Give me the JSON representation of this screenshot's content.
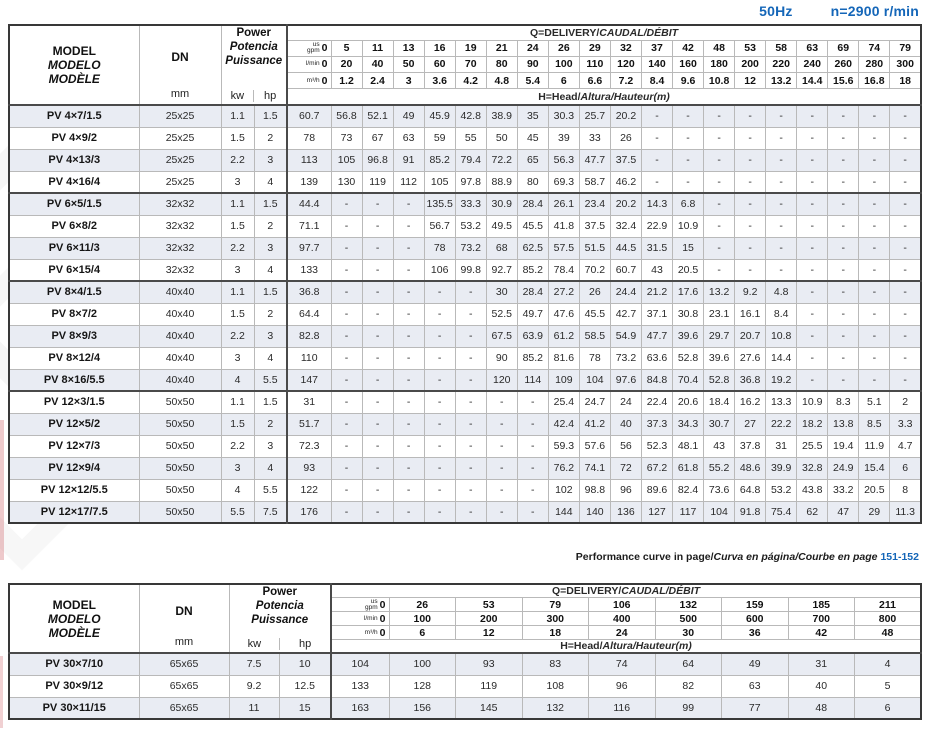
{
  "page": {
    "frequency": "50Hz",
    "speed": "n=2900 r/min"
  },
  "colors": {
    "accent_blue": "#1466b8",
    "row_stripe": "#e9ecf3",
    "border_dark": "#4a4a4a",
    "border_light": "#b9b9b9"
  },
  "note": {
    "plain": "Performance curve in page/",
    "italic": "Curva en página/Courbe en page",
    "pages": "151-152"
  },
  "shared": {
    "model_header": [
      {
        "t": "MODEL",
        "i": false
      },
      {
        "t": "MODELO",
        "i": true
      },
      {
        "t": "MODÈLE",
        "i": true
      }
    ],
    "dn_label": "DN",
    "mm_label": "mm",
    "power_header": [
      {
        "t": "Power",
        "i": false
      },
      {
        "t": "Potencia",
        "i": true
      },
      {
        "t": "Puissance",
        "i": true
      }
    ],
    "kw_label": "kw",
    "hp_label": "hp",
    "q_title": [
      {
        "t": "Q=DELIVERY/",
        "i": false
      },
      {
        "t": "CAUDAL/DÉBIT",
        "i": true
      }
    ],
    "h_title": [
      {
        "t": "H=Head/",
        "i": false
      },
      {
        "t": "Altura/Hauteur",
        "i": true
      },
      {
        "t": "(m)",
        "i": true
      }
    ],
    "units": [
      "us gpm",
      "l/min",
      "m³/h"
    ]
  },
  "table1": {
    "gpm": [
      "0",
      "5",
      "11",
      "13",
      "16",
      "19",
      "21",
      "24",
      "26",
      "29",
      "32",
      "37",
      "42",
      "48",
      "53",
      "58",
      "63",
      "69",
      "74",
      "79"
    ],
    "lmin": [
      "0",
      "20",
      "40",
      "50",
      "60",
      "70",
      "80",
      "90",
      "100",
      "110",
      "120",
      "140",
      "160",
      "180",
      "200",
      "220",
      "240",
      "260",
      "280",
      "300"
    ],
    "m3h": [
      "0",
      "1.2",
      "2.4",
      "3",
      "3.6",
      "4.2",
      "4.8",
      "5.4",
      "6",
      "6.6",
      "7.2",
      "8.4",
      "9.6",
      "10.8",
      "12",
      "13.2",
      "14.4",
      "15.6",
      "16.8",
      "18"
    ],
    "rows": [
      {
        "model": "PV 4×7/1.5",
        "dn": "25x25",
        "kw": "1.1",
        "hp": "1.5",
        "g": false,
        "values": [
          "60.7",
          "56.8",
          "52.1",
          "49",
          "45.9",
          "42.8",
          "38.9",
          "35",
          "30.3",
          "25.7",
          "20.2",
          "-",
          "-",
          "-",
          "-",
          "-",
          "-",
          "-",
          "-",
          "-"
        ]
      },
      {
        "model": "PV 4×9/2",
        "dn": "25x25",
        "kw": "1.5",
        "hp": "2",
        "g": false,
        "values": [
          "78",
          "73",
          "67",
          "63",
          "59",
          "55",
          "50",
          "45",
          "39",
          "33",
          "26",
          "-",
          "-",
          "-",
          "-",
          "-",
          "-",
          "-",
          "-",
          "-"
        ]
      },
      {
        "model": "PV 4×13/3",
        "dn": "25x25",
        "kw": "2.2",
        "hp": "3",
        "g": false,
        "values": [
          "113",
          "105",
          "96.8",
          "91",
          "85.2",
          "79.4",
          "72.2",
          "65",
          "56.3",
          "47.7",
          "37.5",
          "-",
          "-",
          "-",
          "-",
          "-",
          "-",
          "-",
          "-",
          "-"
        ]
      },
      {
        "model": "PV 4×16/4",
        "dn": "25x25",
        "kw": "3",
        "hp": "4",
        "g": true,
        "values": [
          "139",
          "130",
          "119",
          "112",
          "105",
          "97.8",
          "88.9",
          "80",
          "69.3",
          "58.7",
          "46.2",
          "-",
          "-",
          "-",
          "-",
          "-",
          "-",
          "-",
          "-",
          "-"
        ]
      },
      {
        "model": "PV 6×5/1.5",
        "dn": "32x32",
        "kw": "1.1",
        "hp": "1.5",
        "g": false,
        "values": [
          "44.4",
          "-",
          "-",
          "-",
          "135.5",
          "33.3",
          "30.9",
          "28.4",
          "26.1",
          "23.4",
          "20.2",
          "14.3",
          "6.8",
          "-",
          "-",
          "-",
          "-",
          "-",
          "-",
          "-"
        ]
      },
      {
        "model": "PV 6×8/2",
        "dn": "32x32",
        "kw": "1.5",
        "hp": "2",
        "g": false,
        "values": [
          "71.1",
          "-",
          "-",
          "-",
          "56.7",
          "53.2",
          "49.5",
          "45.5",
          "41.8",
          "37.5",
          "32.4",
          "22.9",
          "10.9",
          "-",
          "-",
          "-",
          "-",
          "-",
          "-",
          "-"
        ]
      },
      {
        "model": "PV 6×11/3",
        "dn": "32x32",
        "kw": "2.2",
        "hp": "3",
        "g": false,
        "values": [
          "97.7",
          "-",
          "-",
          "-",
          "78",
          "73.2",
          "68",
          "62.5",
          "57.5",
          "51.5",
          "44.5",
          "31.5",
          "15",
          "-",
          "-",
          "-",
          "-",
          "-",
          "-",
          "-"
        ]
      },
      {
        "model": "PV 6×15/4",
        "dn": "32x32",
        "kw": "3",
        "hp": "4",
        "g": true,
        "values": [
          "133",
          "-",
          "-",
          "-",
          "106",
          "99.8",
          "92.7",
          "85.2",
          "78.4",
          "70.2",
          "60.7",
          "43",
          "20.5",
          "-",
          "-",
          "-",
          "-",
          "-",
          "-",
          "-"
        ]
      },
      {
        "model": "PV 8×4/1.5",
        "dn": "40x40",
        "kw": "1.1",
        "hp": "1.5",
        "g": false,
        "values": [
          "36.8",
          "-",
          "-",
          "-",
          "-",
          "-",
          "30",
          "28.4",
          "27.2",
          "26",
          "24.4",
          "21.2",
          "17.6",
          "13.2",
          "9.2",
          "4.8",
          "-",
          "-",
          "-",
          "-"
        ]
      },
      {
        "model": "PV 8×7/2",
        "dn": "40x40",
        "kw": "1.5",
        "hp": "2",
        "g": false,
        "values": [
          "64.4",
          "-",
          "-",
          "-",
          "-",
          "-",
          "52.5",
          "49.7",
          "47.6",
          "45.5",
          "42.7",
          "37.1",
          "30.8",
          "23.1",
          "16.1",
          "8.4",
          "-",
          "-",
          "-",
          "-"
        ]
      },
      {
        "model": "PV 8×9/3",
        "dn": "40x40",
        "kw": "2.2",
        "hp": "3",
        "g": false,
        "values": [
          "82.8",
          "-",
          "-",
          "-",
          "-",
          "-",
          "67.5",
          "63.9",
          "61.2",
          "58.5",
          "54.9",
          "47.7",
          "39.6",
          "29.7",
          "20.7",
          "10.8",
          "-",
          "-",
          "-",
          "-"
        ]
      },
      {
        "model": "PV 8×12/4",
        "dn": "40x40",
        "kw": "3",
        "hp": "4",
        "g": false,
        "values": [
          "110",
          "-",
          "-",
          "-",
          "-",
          "-",
          "90",
          "85.2",
          "81.6",
          "78",
          "73.2",
          "63.6",
          "52.8",
          "39.6",
          "27.6",
          "14.4",
          "-",
          "-",
          "-",
          "-"
        ]
      },
      {
        "model": "PV 8×16/5.5",
        "dn": "40x40",
        "kw": "4",
        "hp": "5.5",
        "g": true,
        "values": [
          "147",
          "-",
          "-",
          "-",
          "-",
          "-",
          "120",
          "114",
          "109",
          "104",
          "97.6",
          "84.8",
          "70.4",
          "52.8",
          "36.8",
          "19.2",
          "-",
          "-",
          "-",
          "-"
        ]
      },
      {
        "model": "PV 12×3/1.5",
        "dn": "50x50",
        "kw": "1.1",
        "hp": "1.5",
        "g": false,
        "values": [
          "31",
          "-",
          "-",
          "-",
          "-",
          "-",
          "-",
          "-",
          "25.4",
          "24.7",
          "24",
          "22.4",
          "20.6",
          "18.4",
          "16.2",
          "13.3",
          "10.9",
          "8.3",
          "5.1",
          "2"
        ]
      },
      {
        "model": "PV 12×5/2",
        "dn": "50x50",
        "kw": "1.5",
        "hp": "2",
        "g": false,
        "values": [
          "51.7",
          "-",
          "-",
          "-",
          "-",
          "-",
          "-",
          "-",
          "42.4",
          "41.2",
          "40",
          "37.3",
          "34.3",
          "30.7",
          "27",
          "22.2",
          "18.2",
          "13.8",
          "8.5",
          "3.3"
        ]
      },
      {
        "model": "PV 12×7/3",
        "dn": "50x50",
        "kw": "2.2",
        "hp": "3",
        "g": false,
        "values": [
          "72.3",
          "-",
          "-",
          "-",
          "-",
          "-",
          "-",
          "-",
          "59.3",
          "57.6",
          "56",
          "52.3",
          "48.1",
          "43",
          "37.8",
          "31",
          "25.5",
          "19.4",
          "11.9",
          "4.7"
        ]
      },
      {
        "model": "PV 12×9/4",
        "dn": "50x50",
        "kw": "3",
        "hp": "4",
        "g": false,
        "values": [
          "93",
          "-",
          "-",
          "-",
          "-",
          "-",
          "-",
          "-",
          "76.2",
          "74.1",
          "72",
          "67.2",
          "61.8",
          "55.2",
          "48.6",
          "39.9",
          "32.8",
          "24.9",
          "15.4",
          "6"
        ]
      },
      {
        "model": "PV 12×12/5.5",
        "dn": "50x50",
        "kw": "4",
        "hp": "5.5",
        "g": false,
        "values": [
          "122",
          "-",
          "-",
          "-",
          "-",
          "-",
          "-",
          "-",
          "102",
          "98.8",
          "96",
          "89.6",
          "82.4",
          "73.6",
          "64.8",
          "53.2",
          "43.8",
          "33.2",
          "20.5",
          "8"
        ]
      },
      {
        "model": "PV 12×17/7.5",
        "dn": "50x50",
        "kw": "5.5",
        "hp": "7.5",
        "g": false,
        "values": [
          "176",
          "-",
          "-",
          "-",
          "-",
          "-",
          "-",
          "-",
          "144",
          "140",
          "136",
          "127",
          "117",
          "104",
          "91.8",
          "75.4",
          "62",
          "47",
          "29",
          "11.3"
        ]
      }
    ]
  },
  "table2": {
    "gpm": [
      "0",
      "26",
      "53",
      "79",
      "106",
      "132",
      "159",
      "185",
      "211"
    ],
    "lmin": [
      "0",
      "100",
      "200",
      "300",
      "400",
      "500",
      "600",
      "700",
      "800"
    ],
    "m3h": [
      "0",
      "6",
      "12",
      "18",
      "24",
      "30",
      "36",
      "42",
      "48"
    ],
    "rows": [
      {
        "model": "PV 30×7/10",
        "dn": "65x65",
        "kw": "7.5",
        "hp": "10",
        "g": false,
        "values": [
          "104",
          "100",
          "93",
          "83",
          "74",
          "64",
          "49",
          "31",
          "4"
        ]
      },
      {
        "model": "PV 30×9/12",
        "dn": "65x65",
        "kw": "9.2",
        "hp": "12.5",
        "g": false,
        "values": [
          "133",
          "128",
          "119",
          "108",
          "96",
          "82",
          "63",
          "40",
          "5"
        ]
      },
      {
        "model": "PV 30×11/15",
        "dn": "65x65",
        "kw": "11",
        "hp": "15",
        "g": false,
        "values": [
          "163",
          "156",
          "145",
          "132",
          "116",
          "99",
          "77",
          "48",
          "6"
        ]
      }
    ]
  }
}
